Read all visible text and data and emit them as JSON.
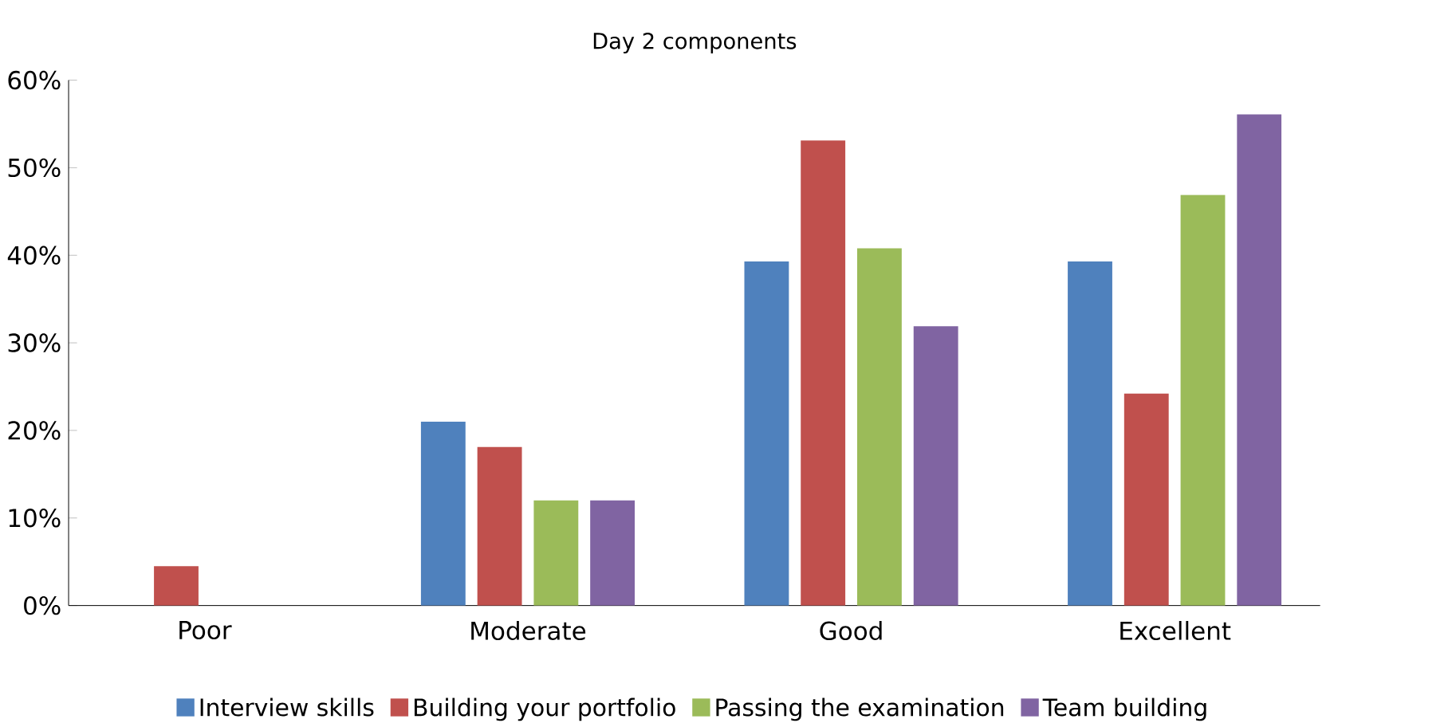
{
  "chart_data": {
    "type": "bar",
    "title": "Day 2 components",
    "categories": [
      "Poor",
      "Moderate",
      "Good",
      "Excellent"
    ],
    "series": [
      {
        "name": "Interview skills",
        "color": "#4f81bd",
        "values": [
          0,
          21,
          39.3,
          39.3
        ]
      },
      {
        "name": "Building your portfolio",
        "color": "#c0504d",
        "values": [
          4.5,
          18.1,
          53.1,
          24.2
        ]
      },
      {
        "name": "Passing the examination",
        "color": "#9bbb59",
        "values": [
          0,
          12,
          40.8,
          46.9
        ]
      },
      {
        "name": "Team building",
        "color": "#8064a2",
        "values": [
          0,
          12,
          31.9,
          56.1
        ]
      }
    ],
    "ylim": [
      0,
      60
    ],
    "yticks": [
      {
        "value": 0,
        "label": "0%"
      },
      {
        "value": 10,
        "label": "10%"
      },
      {
        "value": 20,
        "label": "20%"
      },
      {
        "value": 30,
        "label": "30%"
      },
      {
        "value": 40,
        "label": "40%"
      },
      {
        "value": 50,
        "label": "50%"
      },
      {
        "value": 60,
        "label": "60%"
      }
    ],
    "grid": false,
    "legend": "bottom"
  }
}
